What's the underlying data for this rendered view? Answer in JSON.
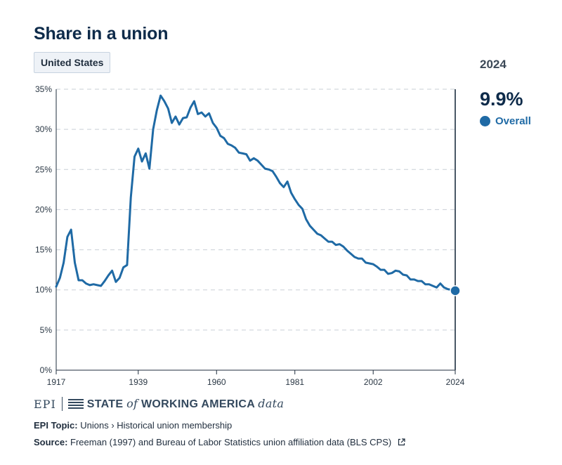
{
  "header": {
    "title": "Share in a union"
  },
  "filter": {
    "region_label": "United States"
  },
  "panel": {
    "year": "2024",
    "value": "9.9%",
    "legend_label": "Overall"
  },
  "colors": {
    "series": "#1f6aa5",
    "grid": "#c9cfd6",
    "axis": "#1f2d3d",
    "marker_line": "#4a5866"
  },
  "footer": {
    "logo_epi": "EPI",
    "logo_state": "STATE",
    "logo_of": "of",
    "logo_wa": "WORKING AMERICA",
    "logo_data": "data",
    "topic_label": "EPI Topic:",
    "topic_text": "Unions › Historical union membership",
    "source_label": "Source:",
    "source_text": "Freeman (1997) and Bureau of Labor Statistics union affiliation data (BLS CPS)"
  },
  "chart_data": {
    "type": "line",
    "title": "Share in a union",
    "xlabel": "",
    "ylabel": "",
    "xlim": [
      1917,
      2024
    ],
    "ylim": [
      0,
      35
    ],
    "yticks": [
      0,
      5,
      10,
      15,
      20,
      25,
      30,
      35
    ],
    "ytick_labels": [
      "0%",
      "5%",
      "10%",
      "15%",
      "20%",
      "25%",
      "30%",
      "35%"
    ],
    "xticks": [
      1917,
      1939,
      1960,
      1981,
      2002,
      2024
    ],
    "xtick_labels": [
      "1917",
      "1939",
      "1960",
      "1981",
      "2002",
      "2024"
    ],
    "highlight": {
      "x": 2024,
      "y": 9.9
    },
    "series": [
      {
        "name": "Overall",
        "x": [
          1917,
          1918,
          1919,
          1920,
          1921,
          1922,
          1923,
          1924,
          1925,
          1926,
          1927,
          1928,
          1929,
          1930,
          1931,
          1932,
          1933,
          1934,
          1935,
          1936,
          1937,
          1938,
          1939,
          1940,
          1941,
          1942,
          1943,
          1944,
          1945,
          1946,
          1947,
          1948,
          1949,
          1950,
          1951,
          1952,
          1953,
          1954,
          1955,
          1956,
          1957,
          1958,
          1959,
          1960,
          1961,
          1962,
          1963,
          1964,
          1965,
          1966,
          1967,
          1968,
          1969,
          1970,
          1971,
          1972,
          1973,
          1974,
          1975,
          1976,
          1977,
          1978,
          1979,
          1980,
          1981,
          1982,
          1983,
          1984,
          1985,
          1986,
          1987,
          1988,
          1989,
          1990,
          1991,
          1992,
          1993,
          1994,
          1995,
          1996,
          1997,
          1998,
          1999,
          2000,
          2001,
          2002,
          2003,
          2004,
          2005,
          2006,
          2007,
          2008,
          2009,
          2010,
          2011,
          2012,
          2013,
          2014,
          2015,
          2016,
          2017,
          2018,
          2019,
          2020,
          2021,
          2022,
          2023,
          2024
        ],
        "values": [
          10.4,
          11.5,
          13.4,
          16.6,
          17.5,
          13.4,
          11.2,
          11.2,
          10.8,
          10.6,
          10.7,
          10.6,
          10.5,
          11.1,
          11.8,
          12.4,
          11.0,
          11.5,
          12.8,
          13.1,
          21.5,
          26.6,
          27.6,
          26.0,
          27.0,
          25.1,
          30.0,
          32.4,
          34.2,
          33.5,
          32.6,
          30.8,
          31.6,
          30.6,
          31.4,
          31.5,
          32.7,
          33.5,
          31.9,
          32.1,
          31.6,
          32.0,
          30.8,
          30.2,
          29.2,
          28.9,
          28.2,
          28.0,
          27.7,
          27.1,
          27.0,
          26.9,
          26.1,
          26.4,
          26.1,
          25.6,
          25.1,
          25.0,
          24.8,
          24.1,
          23.3,
          22.8,
          23.5,
          22.1,
          21.3,
          20.6,
          20.1,
          18.8,
          18.0,
          17.5,
          17.0,
          16.8,
          16.4,
          16.0,
          16.0,
          15.6,
          15.7,
          15.4,
          14.9,
          14.5,
          14.1,
          13.9,
          13.9,
          13.4,
          13.3,
          13.2,
          12.9,
          12.5,
          12.5,
          12.0,
          12.1,
          12.4,
          12.3,
          11.9,
          11.8,
          11.3,
          11.3,
          11.1,
          11.1,
          10.7,
          10.7,
          10.5,
          10.3,
          10.8,
          10.3,
          10.1,
          10.0,
          9.9
        ]
      }
    ]
  }
}
